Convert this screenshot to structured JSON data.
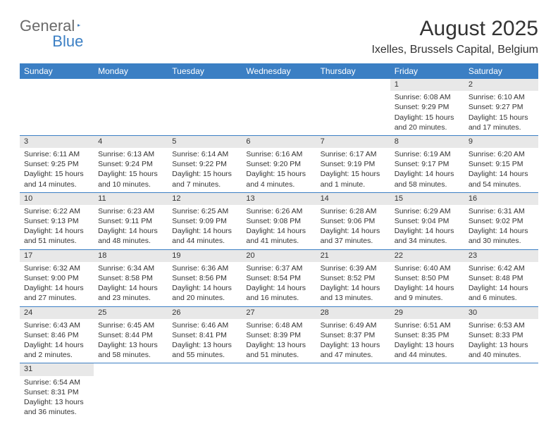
{
  "logo": {
    "text1": "General",
    "text2": "Blue"
  },
  "title": "August 2025",
  "location": "Ixelles, Brussels Capital, Belgium",
  "colors": {
    "header_bg": "#3b7fc4",
    "header_text": "#ffffff",
    "daynum_bg": "#e8e8e8",
    "row_border": "#3b7fc4",
    "logo_gray": "#6a6a6a",
    "logo_blue": "#3b7fc4"
  },
  "weekdays": [
    "Sunday",
    "Monday",
    "Tuesday",
    "Wednesday",
    "Thursday",
    "Friday",
    "Saturday"
  ],
  "weeks": [
    [
      {
        "n": "",
        "lines": []
      },
      {
        "n": "",
        "lines": []
      },
      {
        "n": "",
        "lines": []
      },
      {
        "n": "",
        "lines": []
      },
      {
        "n": "",
        "lines": []
      },
      {
        "n": "1",
        "lines": [
          "Sunrise: 6:08 AM",
          "Sunset: 9:29 PM",
          "Daylight: 15 hours and 20 minutes."
        ]
      },
      {
        "n": "2",
        "lines": [
          "Sunrise: 6:10 AM",
          "Sunset: 9:27 PM",
          "Daylight: 15 hours and 17 minutes."
        ]
      }
    ],
    [
      {
        "n": "3",
        "lines": [
          "Sunrise: 6:11 AM",
          "Sunset: 9:25 PM",
          "Daylight: 15 hours and 14 minutes."
        ]
      },
      {
        "n": "4",
        "lines": [
          "Sunrise: 6:13 AM",
          "Sunset: 9:24 PM",
          "Daylight: 15 hours and 10 minutes."
        ]
      },
      {
        "n": "5",
        "lines": [
          "Sunrise: 6:14 AM",
          "Sunset: 9:22 PM",
          "Daylight: 15 hours and 7 minutes."
        ]
      },
      {
        "n": "6",
        "lines": [
          "Sunrise: 6:16 AM",
          "Sunset: 9:20 PM",
          "Daylight: 15 hours and 4 minutes."
        ]
      },
      {
        "n": "7",
        "lines": [
          "Sunrise: 6:17 AM",
          "Sunset: 9:19 PM",
          "Daylight: 15 hours and 1 minute."
        ]
      },
      {
        "n": "8",
        "lines": [
          "Sunrise: 6:19 AM",
          "Sunset: 9:17 PM",
          "Daylight: 14 hours and 58 minutes."
        ]
      },
      {
        "n": "9",
        "lines": [
          "Sunrise: 6:20 AM",
          "Sunset: 9:15 PM",
          "Daylight: 14 hours and 54 minutes."
        ]
      }
    ],
    [
      {
        "n": "10",
        "lines": [
          "Sunrise: 6:22 AM",
          "Sunset: 9:13 PM",
          "Daylight: 14 hours and 51 minutes."
        ]
      },
      {
        "n": "11",
        "lines": [
          "Sunrise: 6:23 AM",
          "Sunset: 9:11 PM",
          "Daylight: 14 hours and 48 minutes."
        ]
      },
      {
        "n": "12",
        "lines": [
          "Sunrise: 6:25 AM",
          "Sunset: 9:09 PM",
          "Daylight: 14 hours and 44 minutes."
        ]
      },
      {
        "n": "13",
        "lines": [
          "Sunrise: 6:26 AM",
          "Sunset: 9:08 PM",
          "Daylight: 14 hours and 41 minutes."
        ]
      },
      {
        "n": "14",
        "lines": [
          "Sunrise: 6:28 AM",
          "Sunset: 9:06 PM",
          "Daylight: 14 hours and 37 minutes."
        ]
      },
      {
        "n": "15",
        "lines": [
          "Sunrise: 6:29 AM",
          "Sunset: 9:04 PM",
          "Daylight: 14 hours and 34 minutes."
        ]
      },
      {
        "n": "16",
        "lines": [
          "Sunrise: 6:31 AM",
          "Sunset: 9:02 PM",
          "Daylight: 14 hours and 30 minutes."
        ]
      }
    ],
    [
      {
        "n": "17",
        "lines": [
          "Sunrise: 6:32 AM",
          "Sunset: 9:00 PM",
          "Daylight: 14 hours and 27 minutes."
        ]
      },
      {
        "n": "18",
        "lines": [
          "Sunrise: 6:34 AM",
          "Sunset: 8:58 PM",
          "Daylight: 14 hours and 23 minutes."
        ]
      },
      {
        "n": "19",
        "lines": [
          "Sunrise: 6:36 AM",
          "Sunset: 8:56 PM",
          "Daylight: 14 hours and 20 minutes."
        ]
      },
      {
        "n": "20",
        "lines": [
          "Sunrise: 6:37 AM",
          "Sunset: 8:54 PM",
          "Daylight: 14 hours and 16 minutes."
        ]
      },
      {
        "n": "21",
        "lines": [
          "Sunrise: 6:39 AM",
          "Sunset: 8:52 PM",
          "Daylight: 14 hours and 13 minutes."
        ]
      },
      {
        "n": "22",
        "lines": [
          "Sunrise: 6:40 AM",
          "Sunset: 8:50 PM",
          "Daylight: 14 hours and 9 minutes."
        ]
      },
      {
        "n": "23",
        "lines": [
          "Sunrise: 6:42 AM",
          "Sunset: 8:48 PM",
          "Daylight: 14 hours and 6 minutes."
        ]
      }
    ],
    [
      {
        "n": "24",
        "lines": [
          "Sunrise: 6:43 AM",
          "Sunset: 8:46 PM",
          "Daylight: 14 hours and 2 minutes."
        ]
      },
      {
        "n": "25",
        "lines": [
          "Sunrise: 6:45 AM",
          "Sunset: 8:44 PM",
          "Daylight: 13 hours and 58 minutes."
        ]
      },
      {
        "n": "26",
        "lines": [
          "Sunrise: 6:46 AM",
          "Sunset: 8:41 PM",
          "Daylight: 13 hours and 55 minutes."
        ]
      },
      {
        "n": "27",
        "lines": [
          "Sunrise: 6:48 AM",
          "Sunset: 8:39 PM",
          "Daylight: 13 hours and 51 minutes."
        ]
      },
      {
        "n": "28",
        "lines": [
          "Sunrise: 6:49 AM",
          "Sunset: 8:37 PM",
          "Daylight: 13 hours and 47 minutes."
        ]
      },
      {
        "n": "29",
        "lines": [
          "Sunrise: 6:51 AM",
          "Sunset: 8:35 PM",
          "Daylight: 13 hours and 44 minutes."
        ]
      },
      {
        "n": "30",
        "lines": [
          "Sunrise: 6:53 AM",
          "Sunset: 8:33 PM",
          "Daylight: 13 hours and 40 minutes."
        ]
      }
    ],
    [
      {
        "n": "31",
        "lines": [
          "Sunrise: 6:54 AM",
          "Sunset: 8:31 PM",
          "Daylight: 13 hours and 36 minutes."
        ]
      },
      {
        "n": "",
        "lines": []
      },
      {
        "n": "",
        "lines": []
      },
      {
        "n": "",
        "lines": []
      },
      {
        "n": "",
        "lines": []
      },
      {
        "n": "",
        "lines": []
      },
      {
        "n": "",
        "lines": []
      }
    ]
  ]
}
